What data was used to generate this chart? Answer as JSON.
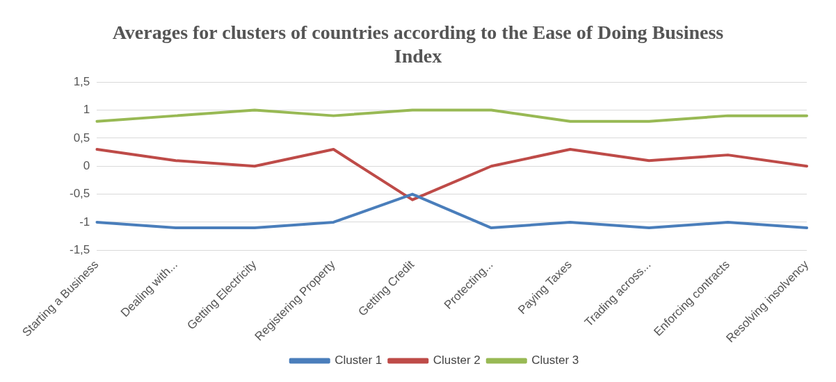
{
  "chart_data": {
    "type": "line",
    "title": "Averages for clusters of countries according to the Ease of Doing Business Index",
    "categories": [
      "Starting a Business",
      "Dealing with...",
      "Getting Electricity",
      "Registering Property",
      "Getting Credit",
      "Protecting...",
      "Paying Taxes",
      "Trading across...",
      "Enforcing contracts",
      "Resolving insolvency"
    ],
    "series": [
      {
        "name": "Cluster 1",
        "color": "#4a7ebb",
        "values": [
          -1,
          -1.1,
          -1.1,
          -1,
          -0.5,
          -1.1,
          -1,
          -1.1,
          -1,
          -1.1
        ]
      },
      {
        "name": "Cluster 2",
        "color": "#be4b48",
        "values": [
          0.3,
          0.1,
          0,
          0.3,
          -0.6,
          0,
          0.3,
          0.1,
          0.2,
          0
        ]
      },
      {
        "name": "Cluster 3",
        "color": "#98b954",
        "values": [
          0.8,
          0.9,
          1,
          0.9,
          1,
          1,
          0.8,
          0.8,
          0.9,
          0.9
        ]
      }
    ],
    "ylim": [
      -1.5,
      1.5
    ],
    "yticks": [
      {
        "value": -1.5,
        "label": "-1,5"
      },
      {
        "value": -1,
        "label": "-1"
      },
      {
        "value": -0.5,
        "label": "-0,5"
      },
      {
        "value": 0,
        "label": "0"
      },
      {
        "value": 0.5,
        "label": "0,5"
      },
      {
        "value": 1,
        "label": "1"
      },
      {
        "value": 1.5,
        "label": "1,5"
      }
    ],
    "grid": "y",
    "legend": "bottom",
    "marker": "none",
    "line_style": "solid"
  }
}
